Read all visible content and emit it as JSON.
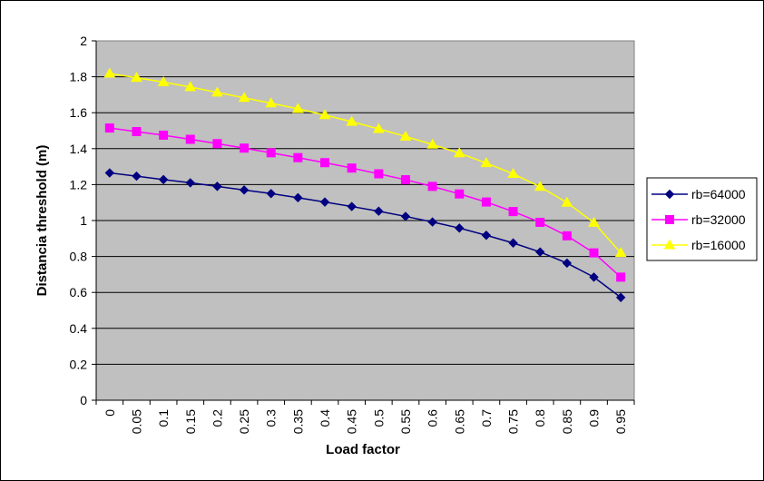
{
  "chart_data": {
    "type": "line",
    "xlabel": "Load factor",
    "ylabel": "Distancia threshold (m)",
    "categories": [
      "0",
      "0.05",
      "0.1",
      "0.15",
      "0.2",
      "0.25",
      "0.3",
      "0.35",
      "0.4",
      "0.45",
      "0.5",
      "0.55",
      "0.6",
      "0.65",
      "0.7",
      "0.75",
      "0.8",
      "0.85",
      "0.9",
      "0.95"
    ],
    "ylim": [
      0,
      2
    ],
    "yticks": [
      "0",
      "0.2",
      "0.4",
      "0.6",
      "0.8",
      "1",
      "1.2",
      "1.4",
      "1.6",
      "1.8",
      "2"
    ],
    "grid": "horizontal",
    "legend_position": "right",
    "plot_background": "#c0c0c0",
    "series": [
      {
        "name": "rb=64000",
        "color": "#000080",
        "marker": "diamond",
        "values": [
          1.265,
          1.247,
          1.228,
          1.21,
          1.19,
          1.17,
          1.15,
          1.127,
          1.103,
          1.078,
          1.052,
          1.023,
          0.992,
          0.958,
          0.918,
          0.875,
          0.825,
          0.763,
          0.685,
          0.572
        ]
      },
      {
        "name": "rb=32000",
        "color": "#ff00ff",
        "marker": "square",
        "values": [
          1.515,
          1.495,
          1.475,
          1.452,
          1.428,
          1.403,
          1.377,
          1.35,
          1.322,
          1.292,
          1.26,
          1.227,
          1.19,
          1.148,
          1.103,
          1.05,
          0.99,
          0.915,
          0.82,
          0.685
        ]
      },
      {
        "name": "rb=16000",
        "color": "#ffff00",
        "marker": "triangle",
        "values": [
          1.818,
          1.795,
          1.77,
          1.743,
          1.713,
          1.683,
          1.653,
          1.622,
          1.587,
          1.55,
          1.51,
          1.468,
          1.423,
          1.375,
          1.32,
          1.26,
          1.188,
          1.1,
          0.988,
          0.82
        ]
      }
    ]
  }
}
